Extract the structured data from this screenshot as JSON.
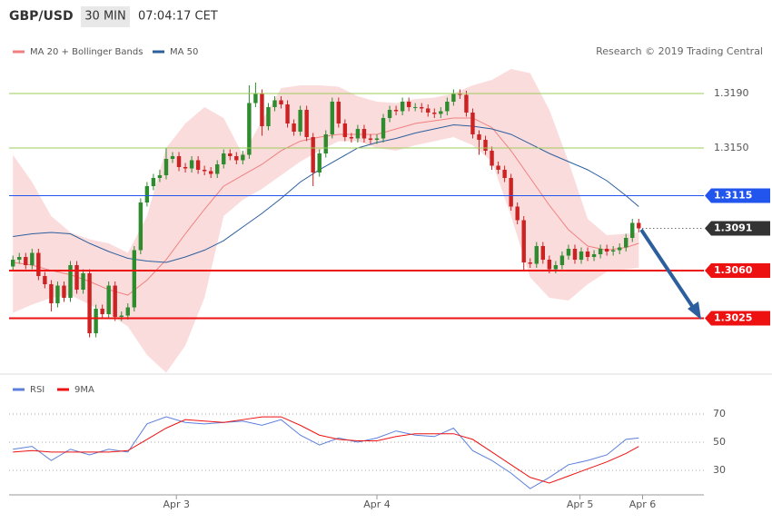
{
  "header": {
    "symbol": "GBP/USD",
    "interval": "30 MIN",
    "time": "07:04:17 CET"
  },
  "chart_data": [
    {
      "type": "candlestick",
      "credit": "Research © 2019 Trading Central",
      "xlim": [
        -0.6,
        108.2
      ],
      "ylim": [
        1.29867,
        1.32333
      ],
      "up_color": "#2e8b2e",
      "down_color": "#cc2222",
      "open": [
        1.3063,
        1.3068,
        1.307,
        1.3064,
        1.3073,
        1.3056,
        1.305,
        1.3036,
        1.3049,
        1.304,
        1.3064,
        1.3046,
        1.3058,
        1.3014,
        1.3032,
        1.3028,
        1.3049,
        1.3026,
        1.3027,
        1.3033,
        1.3075,
        1.311,
        1.3122,
        1.3128,
        1.313,
        1.3142,
        1.3144,
        1.3136,
        1.3135,
        1.3141,
        1.3134,
        1.3133,
        1.3131,
        1.3138,
        1.3146,
        1.3144,
        1.3141,
        1.3145,
        1.3183,
        1.319,
        1.3166,
        1.318,
        1.3185,
        1.3182,
        1.3168,
        1.3162,
        1.3178,
        1.3158,
        1.3132,
        1.3146,
        1.316,
        1.3184,
        1.3168,
        1.3158,
        1.3157,
        1.3164,
        1.3157,
        1.3156,
        1.3157,
        1.3172,
        1.3178,
        1.3177,
        1.3184,
        1.318,
        1.318,
        1.3179,
        1.3176,
        1.3175,
        1.3177,
        1.3184,
        1.319,
        1.3189,
        1.3176,
        1.316,
        1.3156,
        1.3148,
        1.3137,
        1.3134,
        1.3128,
        1.3107,
        1.3097,
        1.3066,
        1.3065,
        1.3078,
        1.3068,
        1.3061,
        1.3064,
        1.3071,
        1.3076,
        1.3068,
        1.3074,
        1.307,
        1.3072,
        1.3076,
        1.3074,
        1.3075,
        1.3077,
        1.3084,
        1.3095
      ],
      "high": [
        1.3071,
        1.3073,
        1.3073,
        1.3076,
        1.3076,
        1.3059,
        1.3053,
        1.3052,
        1.3052,
        1.3067,
        1.3067,
        1.3061,
        1.3061,
        1.3035,
        1.3035,
        1.3052,
        1.3052,
        1.303,
        1.3036,
        1.3078,
        1.3113,
        1.3125,
        1.3131,
        1.3134,
        1.315,
        1.3147,
        1.3147,
        1.3139,
        1.3144,
        1.3144,
        1.3137,
        1.3136,
        1.3141,
        1.3149,
        1.3149,
        1.3147,
        1.3148,
        1.3196,
        1.3198,
        1.3193,
        1.3183,
        1.3188,
        1.3188,
        1.3185,
        1.3171,
        1.3181,
        1.3181,
        1.3161,
        1.3149,
        1.3163,
        1.3187,
        1.3187,
        1.3171,
        1.3161,
        1.3167,
        1.3167,
        1.316,
        1.316,
        1.3175,
        1.3181,
        1.3181,
        1.3187,
        1.3187,
        1.3183,
        1.3183,
        1.3182,
        1.3179,
        1.318,
        1.3187,
        1.3193,
        1.3193,
        1.3192,
        1.3179,
        1.3163,
        1.3159,
        1.3151,
        1.314,
        1.3137,
        1.3131,
        1.311,
        1.31,
        1.3069,
        1.3081,
        1.3081,
        1.3071,
        1.3067,
        1.3074,
        1.3079,
        1.3079,
        1.3077,
        1.3077,
        1.3075,
        1.3079,
        1.3079,
        1.3078,
        1.308,
        1.3087,
        1.3098,
        1.3098
      ],
      "low": [
        1.306,
        1.3065,
        1.3061,
        1.3061,
        1.3053,
        1.3047,
        1.303,
        1.3033,
        1.3037,
        1.3037,
        1.3043,
        1.3043,
        1.3011,
        1.3011,
        1.3025,
        1.3025,
        1.3023,
        1.3023,
        1.3024,
        1.303,
        1.3072,
        1.3107,
        1.3119,
        1.3125,
        1.3127,
        1.3139,
        1.3133,
        1.3132,
        1.3132,
        1.3131,
        1.313,
        1.3128,
        1.3128,
        1.3135,
        1.3141,
        1.3138,
        1.3138,
        1.3142,
        1.318,
        1.3159,
        1.3163,
        1.3177,
        1.3179,
        1.3165,
        1.3159,
        1.3159,
        1.3155,
        1.3122,
        1.3129,
        1.3143,
        1.3157,
        1.3165,
        1.3155,
        1.3154,
        1.3154,
        1.3154,
        1.3153,
        1.3153,
        1.3154,
        1.3169,
        1.3174,
        1.3174,
        1.3177,
        1.3177,
        1.3176,
        1.3173,
        1.3172,
        1.3172,
        1.3174,
        1.3181,
        1.3186,
        1.3173,
        1.3157,
        1.3145,
        1.3145,
        1.3134,
        1.3131,
        1.3125,
        1.3104,
        1.3094,
        1.306,
        1.3062,
        1.3062,
        1.3065,
        1.3058,
        1.3058,
        1.3061,
        1.3068,
        1.3065,
        1.3065,
        1.3067,
        1.3067,
        1.3069,
        1.3071,
        1.3071,
        1.3072,
        1.3074,
        1.3081,
        1.3088
      ],
      "close": [
        1.3068,
        1.307,
        1.3064,
        1.3073,
        1.3056,
        1.305,
        1.3036,
        1.3049,
        1.304,
        1.3064,
        1.3046,
        1.3058,
        1.3014,
        1.3032,
        1.3028,
        1.3049,
        1.3026,
        1.3027,
        1.3033,
        1.3075,
        1.311,
        1.3122,
        1.3128,
        1.313,
        1.3142,
        1.3144,
        1.3136,
        1.3135,
        1.3141,
        1.3134,
        1.3133,
        1.3131,
        1.3138,
        1.3146,
        1.3144,
        1.3141,
        1.3145,
        1.3183,
        1.319,
        1.3166,
        1.318,
        1.3185,
        1.3182,
        1.3168,
        1.3162,
        1.3178,
        1.3158,
        1.3132,
        1.3146,
        1.316,
        1.3184,
        1.3168,
        1.3158,
        1.3157,
        1.3164,
        1.3157,
        1.3156,
        1.3157,
        1.3172,
        1.3178,
        1.3177,
        1.3184,
        1.318,
        1.318,
        1.3179,
        1.3176,
        1.3175,
        1.3177,
        1.3184,
        1.319,
        1.3189,
        1.3176,
        1.316,
        1.3156,
        1.3148,
        1.3137,
        1.3134,
        1.3128,
        1.3107,
        1.3097,
        1.3066,
        1.3065,
        1.3078,
        1.3068,
        1.3061,
        1.3064,
        1.3071,
        1.3076,
        1.3068,
        1.3074,
        1.307,
        1.3072,
        1.3076,
        1.3074,
        1.3075,
        1.3077,
        1.3084,
        1.3095,
        1.3091
      ],
      "series": [
        {
          "name": "MA 20 + Bollinger Bands",
          "color": "#f08080",
          "x": [
            0,
            3,
            6,
            9,
            12,
            15,
            18,
            21,
            24,
            27,
            30,
            33,
            36,
            39,
            42,
            45,
            48,
            51,
            54,
            57,
            60,
            63,
            66,
            69,
            72,
            75,
            78,
            81,
            84,
            87,
            90,
            93,
            96,
            98
          ],
          "values": [
            1.3066,
            1.3064,
            1.306,
            1.3057,
            1.3052,
            1.3046,
            1.3042,
            1.3053,
            1.3068,
            1.3087,
            1.3105,
            1.3122,
            1.313,
            1.3138,
            1.3148,
            1.3155,
            1.3158,
            1.316,
            1.316,
            1.316,
            1.3164,
            1.3168,
            1.317,
            1.3172,
            1.3172,
            1.3165,
            1.3148,
            1.3128,
            1.3108,
            1.309,
            1.3078,
            1.3075,
            1.3077,
            1.308
          ],
          "upper": [
            1.3145,
            1.3125,
            1.31,
            1.3088,
            1.3083,
            1.308,
            1.3073,
            1.31,
            1.315,
            1.3168,
            1.318,
            1.3172,
            1.3145,
            1.317,
            1.3194,
            1.3196,
            1.3196,
            1.3195,
            1.3188,
            1.3184,
            1.3183,
            1.3186,
            1.3187,
            1.319,
            1.3196,
            1.32,
            1.3208,
            1.3205,
            1.3178,
            1.314,
            1.3098,
            1.3086,
            1.3087,
            1.3088
          ],
          "lower": [
            1.3029,
            1.3035,
            1.304,
            1.3042,
            1.3035,
            1.3028,
            1.3019,
            1.2998,
            1.2985,
            1.3005,
            1.304,
            1.31,
            1.3112,
            1.312,
            1.313,
            1.314,
            1.3148,
            1.3155,
            1.3155,
            1.315,
            1.3148,
            1.3152,
            1.3155,
            1.3158,
            1.3152,
            1.314,
            1.31,
            1.3055,
            1.304,
            1.3038,
            1.305,
            1.3059,
            1.3061,
            1.3062
          ]
        },
        {
          "name": "MA 50",
          "color": "#2c5f9e",
          "x": [
            0,
            3,
            6,
            9,
            12,
            15,
            18,
            21,
            24,
            27,
            30,
            33,
            36,
            39,
            42,
            45,
            48,
            51,
            54,
            57,
            60,
            63,
            66,
            69,
            72,
            75,
            78,
            81,
            84,
            87,
            90,
            93,
            96,
            98
          ],
          "values": [
            1.3085,
            1.3087,
            1.3088,
            1.3087,
            1.308,
            1.3074,
            1.3069,
            1.3067,
            1.3066,
            1.307,
            1.3075,
            1.3082,
            1.3092,
            1.3102,
            1.3113,
            1.3125,
            1.3134,
            1.3142,
            1.315,
            1.3154,
            1.3157,
            1.3161,
            1.3164,
            1.3167,
            1.3166,
            1.3164,
            1.316,
            1.3153,
            1.3146,
            1.314,
            1.3134,
            1.3126,
            1.3115,
            1.3107
          ]
        }
      ],
      "levels": [
        {
          "value": 1.319,
          "label": "1.3190",
          "color": "#9ccc5a",
          "line": "solid",
          "box": false
        },
        {
          "value": 1.315,
          "label": "1.3150",
          "color": "#9ccc5a",
          "line": "solid",
          "box": false
        },
        {
          "value": 1.3115,
          "label": "1.3115",
          "color": "#2255ee",
          "line": "solid",
          "box": true
        },
        {
          "value": 1.3091,
          "label": "1.3091",
          "color": "#333333",
          "line": "dotted",
          "box": true
        },
        {
          "value": 1.306,
          "label": "1.3060",
          "color": "#ee1111",
          "line": "thick",
          "box": true
        },
        {
          "value": 1.3025,
          "label": "1.3025",
          "color": "#ee1111",
          "line": "thick",
          "box": true
        }
      ]
    },
    {
      "type": "line",
      "xlim": [
        -0.6,
        108.2
      ],
      "ylim": [
        12.6,
        93.2
      ],
      "yticks": [
        30,
        50,
        70
      ],
      "grid": true,
      "xticks": [
        {
          "value": 25.6,
          "label": "Apr 3"
        },
        {
          "value": 57,
          "label": "Apr 4"
        },
        {
          "value": 88.8,
          "label": "Apr 5"
        },
        {
          "value": 98.6,
          "label": "Apr 6"
        }
      ],
      "series": [
        {
          "name": "RSI",
          "color": "#5b7fdb",
          "x": [
            0,
            3,
            6,
            9,
            12,
            15,
            18,
            21,
            24,
            27,
            30,
            33,
            36,
            39,
            42,
            45,
            48,
            51,
            54,
            57,
            60,
            63,
            66,
            69,
            72,
            75,
            78,
            81,
            84,
            87,
            90,
            93,
            96,
            98
          ],
          "values": [
            45,
            47,
            37,
            45,
            41,
            45,
            43,
            63,
            68,
            64,
            63,
            64,
            65,
            62,
            66,
            55,
            48,
            53,
            50,
            53,
            58,
            55,
            54,
            60,
            44,
            37,
            28,
            17,
            25,
            34,
            37,
            41,
            52,
            53
          ]
        },
        {
          "name": "9MA",
          "color": "#ee1111",
          "x": [
            0,
            3,
            6,
            9,
            12,
            15,
            18,
            21,
            24,
            27,
            30,
            33,
            36,
            39,
            42,
            45,
            48,
            51,
            54,
            57,
            60,
            63,
            66,
            69,
            72,
            75,
            78,
            81,
            84,
            87,
            90,
            93,
            96,
            98
          ],
          "values": [
            43,
            44,
            43,
            43,
            43,
            43,
            44,
            52,
            60,
            66,
            65,
            64,
            66,
            68,
            68,
            62,
            55,
            52,
            51,
            51,
            54,
            56,
            56,
            56,
            52,
            43,
            34,
            25,
            21,
            26,
            31,
            36,
            42,
            47
          ]
        }
      ]
    }
  ]
}
